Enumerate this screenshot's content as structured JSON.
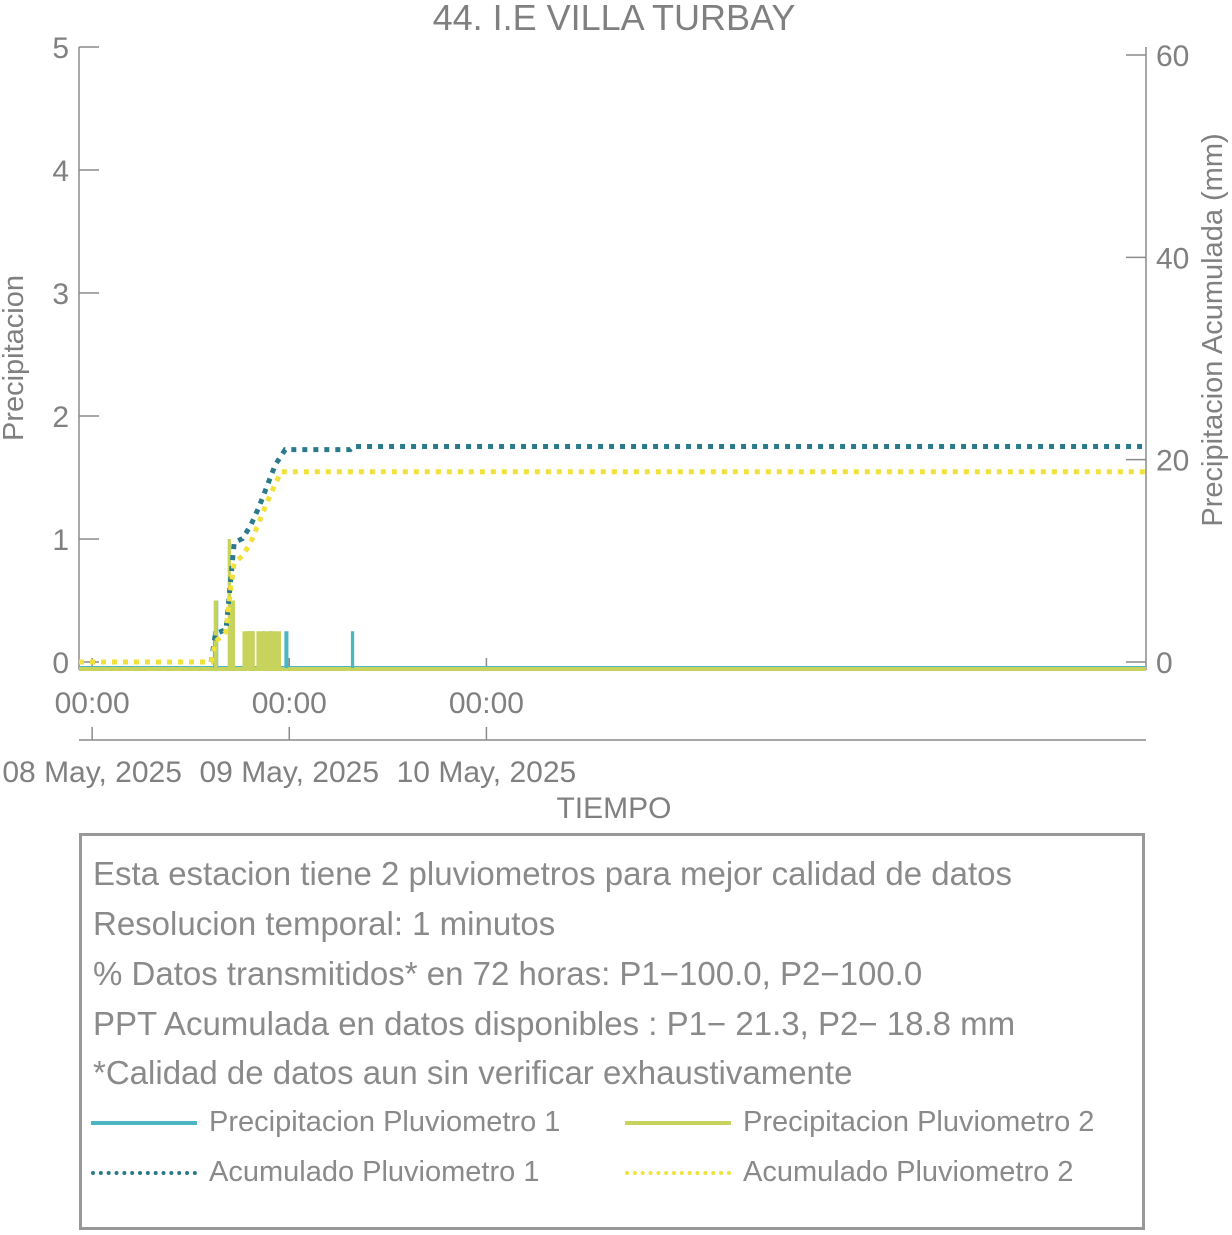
{
  "colors": {
    "p1": "#4cb6c2",
    "p2": "#c7d35c",
    "acc1": "#2a7a8c",
    "acc2": "#f1e13a",
    "axis": "#8c8c8c",
    "text": "#808080"
  },
  "chart_data": {
    "type": "line",
    "title": "44. I.E VILLA TURBAY",
    "xlabel": "TIEMPO",
    "ylabel_left": "Precipitacion",
    "ylabel_right": "Precipitacion Acumulada (mm)",
    "ylim_left": [
      0,
      5
    ],
    "ylim_right": [
      0,
      60
    ],
    "yticks_left": [
      "0",
      "1",
      "2",
      "3",
      "4",
      "5"
    ],
    "yticks_right": [
      "0",
      "20",
      "40",
      "60"
    ],
    "xlim_hours": [
      -1.6,
      128.3
    ],
    "xticks": [
      {
        "hour": 0,
        "time": "00:00",
        "date": "08 May, 2025"
      },
      {
        "hour": 24,
        "time": "00:00",
        "date": "09 May, 2025"
      },
      {
        "hour": 48,
        "time": "00:00",
        "date": "10 May, 2025"
      }
    ],
    "grid": false,
    "series": [
      {
        "name": "Precipitacion Pluviometro 1",
        "axis": "left",
        "style": "bars",
        "bars": [
          {
            "start": 14.7,
            "end": 14.9,
            "value": 0.25
          },
          {
            "start": 15.1,
            "end": 15.35,
            "value": 0.5
          },
          {
            "start": 16.6,
            "end": 16.85,
            "value": 1.0
          },
          {
            "start": 16.9,
            "end": 17.3,
            "value": 0.5
          },
          {
            "start": 18.9,
            "end": 19.3,
            "value": 0.25
          },
          {
            "start": 19.4,
            "end": 19.7,
            "value": 0.25
          },
          {
            "start": 20.8,
            "end": 21.0,
            "value": 0.25
          },
          {
            "start": 21.5,
            "end": 22.0,
            "value": 0.25
          },
          {
            "start": 23.4,
            "end": 23.9,
            "value": 0.25
          },
          {
            "start": 31.5,
            "end": 31.9,
            "value": 0.25
          }
        ]
      },
      {
        "name": "Precipitacion Pluviometro 2",
        "axis": "left",
        "style": "bars",
        "bars": [
          {
            "start": 14.8,
            "end": 15.3,
            "value": 0.5
          },
          {
            "start": 16.5,
            "end": 16.9,
            "value": 1.0
          },
          {
            "start": 16.9,
            "end": 17.4,
            "value": 0.5
          },
          {
            "start": 18.3,
            "end": 19.8,
            "value": 0.25
          },
          {
            "start": 20.0,
            "end": 23.0,
            "value": 0.25
          }
        ]
      },
      {
        "name": "Acumulado Pluviometro 1",
        "axis": "right",
        "style": "dotted",
        "x": [
          -1.6,
          14.5,
          15.0,
          16.3,
          16.8,
          17.3,
          18.3,
          19.3,
          20.3,
          21.3,
          22.3,
          23.5,
          24.0,
          31.4,
          31.8,
          128.3
        ],
        "y": [
          0,
          0,
          2.8,
          3.2,
          7.5,
          11.8,
          12.2,
          13.5,
          15.3,
          17.4,
          19.5,
          21.0,
          21.0,
          21.0,
          21.3,
          21.3
        ]
      },
      {
        "name": "Acumulado Pluviometro 2",
        "axis": "right",
        "style": "dotted",
        "x": [
          -1.6,
          14.5,
          15.0,
          16.3,
          16.8,
          17.3,
          18.3,
          19.3,
          20.3,
          21.3,
          22.3,
          23.0,
          128.3
        ],
        "y": [
          0,
          0,
          2.0,
          3.0,
          6.8,
          9.8,
          10.5,
          11.8,
          13.8,
          15.8,
          17.6,
          18.8,
          18.8
        ]
      }
    ]
  },
  "info": {
    "lines": [
      "Esta estacion tiene 2 pluviometros para mejor calidad de datos",
      "Resolucion temporal: 1 minutos",
      "% Datos transmitidos* en 72 horas: P1−100.0, P2−100.0",
      "PPT Acumulada en datos disponibles : P1− 21.3, P2− 18.8 mm",
      "*Calidad de datos aun sin verificar exhaustivamente"
    ]
  },
  "legend": {
    "items": [
      {
        "label": "Precipitacion Pluviometro 1",
        "color": "#4cb6c2",
        "style": "solid"
      },
      {
        "label": "Precipitacion Pluviometro 2",
        "color": "#c7d35c",
        "style": "solid"
      },
      {
        "label": "Acumulado Pluviometro 1",
        "color": "#2a7a8c",
        "style": "dotted"
      },
      {
        "label": "Acumulado Pluviometro 2",
        "color": "#f1e13a",
        "style": "dotted"
      }
    ]
  }
}
